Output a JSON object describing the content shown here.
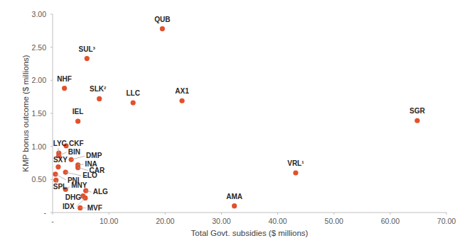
{
  "chart_data": {
    "type": "scatter",
    "x_label": "Total Govt. subsidies ($ millions)",
    "y_label": "KMP bonus outcome ($ millions)",
    "labels": [
      "QUB",
      "SUL³",
      "NHF",
      "SLK²",
      "LLC",
      "AX1",
      "SGR",
      "IEL",
      "VRL¹",
      "AMA",
      "LYC",
      "CKF",
      "BIN",
      "DMP",
      "INA",
      "CAR",
      "SXY",
      "ELO",
      "PNI",
      "SPL",
      "MNY",
      "ALG",
      "DHG",
      "IDX",
      "MVF"
    ],
    "x": [
      19.5,
      6.1,
      2.1,
      8.3,
      14.3,
      23.0,
      64.8,
      4.5,
      43.2,
      32.3,
      1.1,
      2.4,
      1.1,
      3.3,
      4.5,
      4.5,
      1.0,
      2.3,
      0.5,
      0.6,
      2.3,
      5.9,
      5.4,
      5.8,
      4.9
    ],
    "values": [
      2.78,
      2.33,
      1.88,
      1.72,
      1.66,
      1.69,
      1.39,
      1.38,
      0.6,
      0.1,
      0.9,
      1.01,
      0.86,
      0.8,
      0.72,
      0.68,
      0.69,
      0.61,
      0.58,
      0.49,
      0.35,
      0.33,
      0.25,
      0.22,
      0.07
    ],
    "color": "#e2502c",
    "marker": "circle",
    "grid": false,
    "xlim": [
      0,
      70
    ],
    "ylim": [
      0,
      3
    ],
    "xticks": [
      {
        "value": 0,
        "label": "-"
      },
      {
        "value": 10,
        "label": "10.00"
      },
      {
        "value": 20,
        "label": "20.00"
      },
      {
        "value": 30,
        "label": "30.00"
      },
      {
        "value": 40,
        "label": "40.00"
      },
      {
        "value": 50,
        "label": "50.00"
      },
      {
        "value": 60,
        "label": "60.00"
      },
      {
        "value": 70,
        "label": "70.00"
      }
    ],
    "yticks": [
      {
        "value": 0,
        "label": "-"
      },
      {
        "value": 0.5,
        "label": "0.50"
      },
      {
        "value": 1,
        "label": "1.00"
      },
      {
        "value": 1.5,
        "label": "1.50"
      },
      {
        "value": 2,
        "label": "2.00"
      },
      {
        "value": 2.5,
        "label": "2.50"
      },
      {
        "value": 3,
        "label": "3.00"
      }
    ]
  }
}
